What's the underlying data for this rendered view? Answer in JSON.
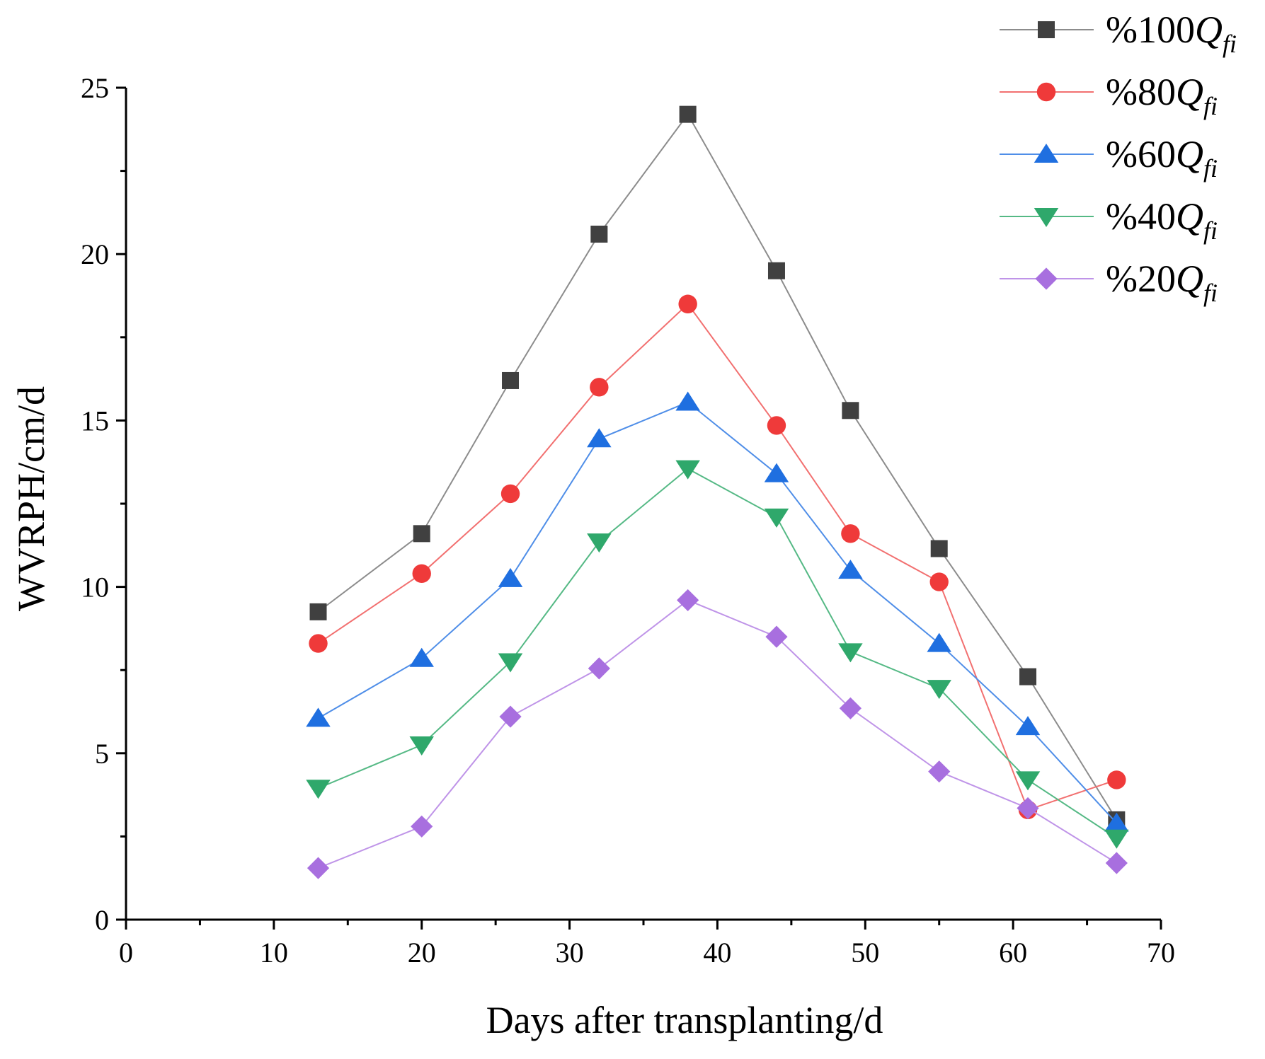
{
  "chart_data": {
    "type": "line",
    "title": "",
    "xlabel": "Days after transplanting/d",
    "ylabel": "WVRPH/cm/d",
    "xlim": [
      0,
      70
    ],
    "ylim": [
      0,
      25
    ],
    "x_ticks": [
      0,
      10,
      20,
      30,
      40,
      50,
      60,
      70
    ],
    "y_ticks": [
      0,
      5,
      10,
      15,
      20,
      25
    ],
    "grid": false,
    "legend_position": "top-right",
    "x": [
      13,
      20,
      26,
      32,
      38,
      44,
      49,
      55,
      61,
      67
    ],
    "series": [
      {
        "name": "%100Q",
        "subscript": "fi",
        "marker": "square",
        "color": "#404040",
        "line_color": "#8c8c8c",
        "values": [
          9.25,
          11.6,
          16.2,
          20.6,
          24.2,
          19.5,
          15.3,
          11.15,
          7.3,
          3.0
        ]
      },
      {
        "name": "%80Q",
        "subscript": "fi",
        "marker": "circle",
        "color": "#ef3a3a",
        "line_color": "#f27070",
        "values": [
          8.3,
          10.4,
          12.8,
          16.0,
          18.5,
          14.85,
          11.6,
          10.15,
          3.3,
          4.2
        ]
      },
      {
        "name": "%60Q",
        "subscript": "fi",
        "marker": "triangle-up",
        "color": "#1f6fe0",
        "line_color": "#4f8ee8",
        "values": [
          6.05,
          7.85,
          10.25,
          14.45,
          15.55,
          13.4,
          10.5,
          8.3,
          5.8,
          2.9
        ]
      },
      {
        "name": "%40Q",
        "subscript": "fi",
        "marker": "triangle-down",
        "color": "#2fa86b",
        "line_color": "#55b985",
        "values": [
          3.95,
          5.25,
          7.75,
          11.35,
          13.55,
          12.1,
          8.05,
          6.95,
          4.2,
          2.45
        ]
      },
      {
        "name": "%20Q",
        "subscript": "fi",
        "marker": "diamond",
        "color": "#a86fdf",
        "line_color": "#bf94e8",
        "values": [
          1.55,
          2.8,
          6.1,
          7.55,
          9.6,
          8.5,
          6.35,
          4.45,
          3.35,
          1.7
        ]
      }
    ]
  }
}
